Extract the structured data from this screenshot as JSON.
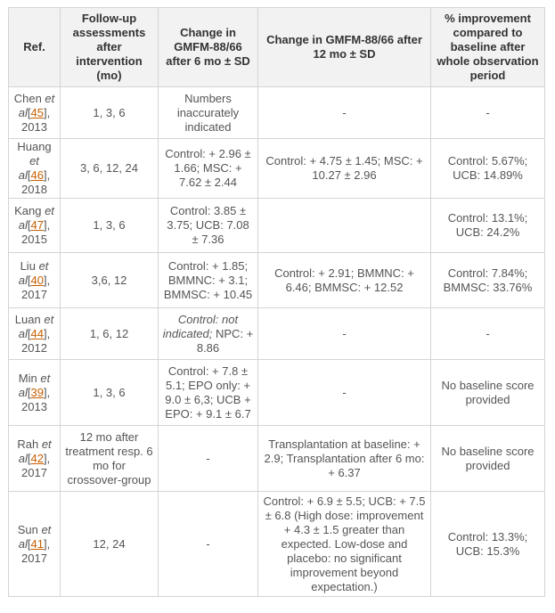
{
  "headers": [
    "Ref.",
    "Follow-up assessments after intervention (mo)",
    "Change in GMFM-88/66 after 6 mo ± SD",
    "Change in GMFM-88/66 after 12 mo ± SD",
    "% improvement compared to baseline after whole observation period"
  ],
  "accent_link_color": "#c65f00",
  "rows": [
    {
      "author": "Chen",
      "etal": "et",
      "al": "al",
      "cite": "45",
      "year": "2013",
      "followup": "1, 3, 6",
      "six_mo": "Numbers inaccurately indicated",
      "six_mo_italic": "",
      "twelve_mo": "-",
      "improvement": "-"
    },
    {
      "author": "Huang",
      "etal": "et",
      "al": "al",
      "cite": "46",
      "year": "2018",
      "followup": "3, 6, 12, 24",
      "six_mo": "Control: + 2.96 ± 1.66; MSC: + 7.62 ± 2.44",
      "six_mo_italic": "",
      "twelve_mo": "Control: + 4.75 ± 1.45; MSC: + 10.27 ± 2.96",
      "improvement": "Control: 5.67%; UCB: 14.89%"
    },
    {
      "author": "Kang",
      "etal": "et",
      "al": "al",
      "cite": "47",
      "year": "2015",
      "followup": "1, 3, 6",
      "six_mo": "Control: 3.85 ± 3.75; UCB: 7.08 ± 7.36",
      "six_mo_italic": "",
      "twelve_mo": "",
      "improvement": "Control: 13.1%; UCB: 24.2%"
    },
    {
      "author": "Liu",
      "etal": "et",
      "al": "al",
      "cite": "40",
      "year": "2017",
      "followup": "3,6, 12",
      "six_mo": "Control: + 1.85; BMMNC: + 3.1; BMMSC: + 10.45",
      "six_mo_italic": "",
      "twelve_mo": "Control: + 2.91; BMMNC: + 6.46; BMMSC: + 12.52",
      "improvement": "Control: 7.84%; BMMSC: 33.76%"
    },
    {
      "author": "Luan",
      "etal": "et",
      "al": "al",
      "cite": "44",
      "year": "2012",
      "followup": "1, 6, 12",
      "six_mo_italic": "Control: not indicated;",
      "six_mo": " NPC: + 8.86",
      "twelve_mo": "-",
      "improvement": "-"
    },
    {
      "author": "Min",
      "etal": "et",
      "al": "al",
      "cite": "39",
      "year": "2013",
      "followup": "1, 3, 6",
      "six_mo": "Control: + 7.8 ± 5.1; EPO only: + 9.0 ± 6,3; UCB + EPO: + 9.1 ± 6.7",
      "six_mo_italic": "",
      "twelve_mo": "-",
      "improvement": "No baseline score provided"
    },
    {
      "author": "Rah",
      "etal": "et",
      "al": "al",
      "cite": "42",
      "year": "2017",
      "followup": "12 mo after treatment resp. 6 mo for crossover-group",
      "six_mo": "-",
      "six_mo_italic": "",
      "twelve_mo": "Transplantation at baseline: + 2.9; Transplantation after 6 mo: + 6.37",
      "improvement": "No baseline score provided"
    },
    {
      "author": "Sun",
      "etal": "et",
      "al": "al",
      "cite": "41",
      "year": "2017",
      "followup": "12, 24",
      "six_mo": "-",
      "six_mo_italic": "",
      "twelve_mo": "Control: + 6.9 ± 5.5; UCB: + 7.5 ± 6.8 (High dose: improvement + 4.3 ± 1.5 greater than expected. Low-dose and placebo: no significant improvement beyond expectation.)",
      "improvement": "Control: 13.3%; UCB: 15.3%"
    }
  ]
}
